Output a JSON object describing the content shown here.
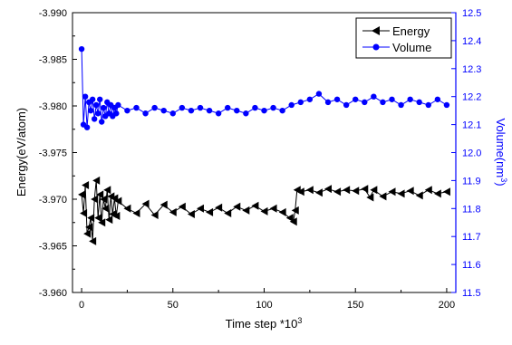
{
  "chart_data": {
    "type": "line",
    "title": "",
    "xlabel": "Time step *10",
    "xlabel_sup": "3",
    "ylabel_left": "Energy(eV/atom)",
    "ylabel_right": "Volume(nm",
    "ylabel_right_sup": "3",
    "ylabel_right_suffix": ")",
    "xlim": [
      -5,
      205
    ],
    "ylim_left": [
      -3.99,
      -3.96
    ],
    "ylim_right": [
      11.5,
      12.5
    ],
    "left_axis_reversed": true,
    "x_ticks": [
      "0",
      "50",
      "100",
      "150",
      "200"
    ],
    "y_left_ticks": [
      "-3.990",
      "-3.985",
      "-3.980",
      "-3.975",
      "-3.970",
      "-3.965",
      "-3.960"
    ],
    "y_right_ticks": [
      "11.5",
      "11.6",
      "11.7",
      "11.8",
      "11.9",
      "12.0",
      "12.1",
      "12.2",
      "12.3",
      "12.4",
      "12.5"
    ],
    "grid": false,
    "legend_position": "top-right",
    "colors": {
      "energy": "#000000",
      "volume": "#0000ff"
    },
    "series": [
      {
        "name": "Energy",
        "axis": "left",
        "marker": "triangle-left",
        "x": [
          0,
          1,
          2,
          3,
          4,
          5,
          6,
          7,
          8,
          9,
          10,
          11,
          12,
          13,
          14,
          15,
          16,
          17,
          18,
          19,
          20,
          25,
          30,
          35,
          40,
          45,
          50,
          55,
          60,
          65,
          70,
          75,
          80,
          85,
          90,
          95,
          100,
          105,
          110,
          114,
          116,
          117,
          118,
          120,
          125,
          130,
          135,
          140,
          145,
          150,
          155,
          158,
          160,
          165,
          170,
          175,
          180,
          185,
          190,
          195,
          200
        ],
        "y": [
          -3.9705,
          -3.9685,
          -3.9715,
          -3.9663,
          -3.967,
          -3.968,
          -3.9655,
          -3.97,
          -3.972,
          -3.968,
          -3.9705,
          -3.9675,
          -3.97,
          -3.969,
          -3.971,
          -3.9678,
          -3.9703,
          -3.9684,
          -3.9701,
          -3.9682,
          -3.9698,
          -3.969,
          -3.9685,
          -3.9695,
          -3.9683,
          -3.9694,
          -3.9686,
          -3.9692,
          -3.9684,
          -3.969,
          -3.9686,
          -3.9691,
          -3.9685,
          -3.9692,
          -3.9688,
          -3.9693,
          -3.9687,
          -3.969,
          -3.9686,
          -3.968,
          -3.9676,
          -3.9688,
          -3.971,
          -3.9708,
          -3.971,
          -3.9707,
          -3.9711,
          -3.9708,
          -3.971,
          -3.9709,
          -3.9711,
          -3.9702,
          -3.971,
          -3.9703,
          -3.9708,
          -3.9706,
          -3.9709,
          -3.9704,
          -3.971,
          -3.9706,
          -3.9708
        ]
      },
      {
        "name": "Volume",
        "axis": "right",
        "marker": "circle",
        "x": [
          0,
          1,
          2,
          3,
          4,
          5,
          6,
          7,
          8,
          9,
          10,
          11,
          12,
          13,
          14,
          15,
          16,
          17,
          18,
          19,
          20,
          25,
          30,
          35,
          40,
          45,
          50,
          55,
          60,
          65,
          70,
          75,
          80,
          85,
          90,
          95,
          100,
          105,
          110,
          115,
          120,
          125,
          130,
          135,
          140,
          145,
          150,
          155,
          160,
          165,
          170,
          175,
          180,
          185,
          190,
          195,
          200
        ],
        "y": [
          12.37,
          12.1,
          12.2,
          12.09,
          12.18,
          12.15,
          12.19,
          12.12,
          12.17,
          12.14,
          12.19,
          12.11,
          12.16,
          12.13,
          12.18,
          12.14,
          12.17,
          12.13,
          12.16,
          12.14,
          12.17,
          12.15,
          12.16,
          12.14,
          12.16,
          12.15,
          12.14,
          12.16,
          12.15,
          12.16,
          12.15,
          12.14,
          12.16,
          12.15,
          12.14,
          12.16,
          12.15,
          12.16,
          12.15,
          12.17,
          12.18,
          12.19,
          12.21,
          12.18,
          12.19,
          12.17,
          12.19,
          12.18,
          12.2,
          12.18,
          12.19,
          12.17,
          12.19,
          12.18,
          12.17,
          12.19,
          12.17
        ]
      }
    ]
  }
}
